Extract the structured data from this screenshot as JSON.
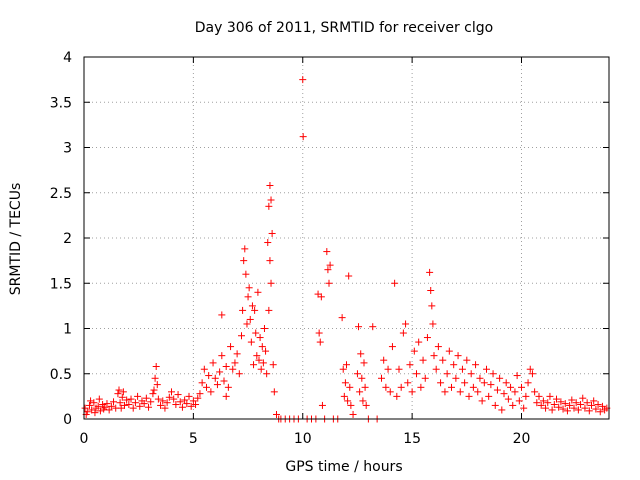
{
  "chart_data": {
    "type": "scatter",
    "title": "Day 306 of 2011, SRMTID for receiver clgo",
    "xlabel": "GPS time / hours",
    "ylabel": "SRMTID / TECUs",
    "xlim": [
      0,
      24
    ],
    "ylim": [
      0,
      4
    ],
    "xticks": [
      "0",
      "5",
      "10",
      "15",
      "20"
    ],
    "yticks": [
      "0",
      "0.5",
      "1",
      "1.5",
      "2",
      "2.5",
      "3",
      "3.5",
      "4"
    ],
    "grid": true,
    "marker": "plus",
    "color": "#ff0000",
    "series": [
      {
        "points": [
          [
            0.05,
            0.12
          ],
          [
            0.15,
            0.08
          ],
          [
            0.25,
            0.15
          ],
          [
            0.35,
            0.1
          ],
          [
            0.45,
            0.18
          ],
          [
            0.55,
            0.12
          ],
          [
            0.65,
            0.14
          ],
          [
            0.75,
            0.09
          ],
          [
            0.85,
            0.16
          ],
          [
            0.95,
            0.13
          ],
          [
            0.1,
            0.05
          ],
          [
            0.3,
            0.2
          ],
          [
            0.5,
            0.07
          ],
          [
            0.7,
            0.22
          ],
          [
            0.9,
            0.11
          ],
          [
            1.05,
            0.17
          ],
          [
            1.15,
            0.1
          ],
          [
            1.25,
            0.14
          ],
          [
            1.35,
            0.19
          ],
          [
            1.45,
            0.12
          ],
          [
            1.55,
            0.28
          ],
          [
            1.65,
            0.18
          ],
          [
            1.75,
            0.24
          ],
          [
            1.85,
            0.15
          ],
          [
            1.95,
            0.21
          ],
          [
            1.6,
            0.32
          ],
          [
            1.7,
            0.12
          ],
          [
            1.8,
            0.3
          ],
          [
            2.05,
            0.16
          ],
          [
            2.15,
            0.22
          ],
          [
            2.25,
            0.12
          ],
          [
            2.35,
            0.18
          ],
          [
            2.45,
            0.25
          ],
          [
            2.55,
            0.14
          ],
          [
            2.65,
            0.2
          ],
          [
            2.75,
            0.17
          ],
          [
            2.85,
            0.23
          ],
          [
            2.95,
            0.13
          ],
          [
            3.05,
            0.19
          ],
          [
            3.15,
            0.28
          ],
          [
            3.25,
            0.45
          ],
          [
            3.3,
            0.58
          ],
          [
            3.35,
            0.38
          ],
          [
            3.2,
            0.32
          ],
          [
            3.4,
            0.22
          ],
          [
            3.5,
            0.15
          ],
          [
            3.6,
            0.2
          ],
          [
            3.7,
            0.12
          ],
          [
            3.8,
            0.18
          ],
          [
            3.9,
            0.24
          ],
          [
            4.0,
            0.3
          ],
          [
            4.1,
            0.22
          ],
          [
            4.2,
            0.16
          ],
          [
            4.3,
            0.27
          ],
          [
            4.4,
            0.19
          ],
          [
            4.5,
            0.13
          ],
          [
            4.6,
            0.21
          ],
          [
            4.7,
            0.17
          ],
          [
            4.8,
            0.25
          ],
          [
            4.9,
            0.14
          ],
          [
            5.0,
            0.2
          ],
          [
            5.1,
            0.16
          ],
          [
            5.2,
            0.23
          ],
          [
            5.3,
            0.28
          ],
          [
            5.4,
            0.4
          ],
          [
            5.5,
            0.55
          ],
          [
            5.6,
            0.35
          ],
          [
            5.7,
            0.48
          ],
          [
            5.8,
            0.3
          ],
          [
            5.9,
            0.62
          ],
          [
            6.0,
            0.45
          ],
          [
            6.1,
            0.38
          ],
          [
            6.2,
            0.52
          ],
          [
            6.3,
            0.7
          ],
          [
            6.4,
            0.42
          ],
          [
            6.5,
            0.58
          ],
          [
            6.6,
            0.35
          ],
          [
            6.7,
            0.8
          ],
          [
            6.8,
            0.55
          ],
          [
            6.9,
            0.62
          ],
          [
            6.3,
            1.15
          ],
          [
            6.5,
            0.25
          ],
          [
            7.0,
            0.72
          ],
          [
            7.1,
            0.5
          ],
          [
            7.2,
            0.92
          ],
          [
            7.25,
            1.2
          ],
          [
            7.3,
            1.75
          ],
          [
            7.35,
            1.88
          ],
          [
            7.4,
            1.6
          ],
          [
            7.45,
            1.05
          ],
          [
            7.5,
            1.35
          ],
          [
            7.55,
            1.45
          ],
          [
            7.6,
            1.1
          ],
          [
            7.65,
            0.85
          ],
          [
            7.7,
            1.25
          ],
          [
            7.75,
            0.6
          ],
          [
            7.8,
            1.2
          ],
          [
            7.85,
            0.95
          ],
          [
            7.9,
            0.7
          ],
          [
            7.95,
            1.4
          ],
          [
            8.0,
            0.65
          ],
          [
            8.05,
            0.9
          ],
          [
            8.1,
            0.55
          ],
          [
            8.15,
            0.8
          ],
          [
            8.2,
            0.62
          ],
          [
            8.25,
            1.0
          ],
          [
            8.3,
            0.75
          ],
          [
            8.35,
            0.5
          ],
          [
            8.4,
            1.95
          ],
          [
            8.45,
            2.35
          ],
          [
            8.5,
            2.58
          ],
          [
            8.55,
            2.42
          ],
          [
            8.5,
            1.75
          ],
          [
            8.55,
            1.5
          ],
          [
            8.6,
            2.05
          ],
          [
            8.45,
            1.2
          ],
          [
            8.65,
            0.6
          ],
          [
            8.7,
            0.3
          ],
          [
            8.8,
            0.05
          ],
          [
            8.9,
            0.0
          ],
          [
            9.0,
            0.0
          ],
          [
            9.2,
            0.0
          ],
          [
            9.4,
            0.0
          ],
          [
            9.6,
            0.0
          ],
          [
            9.8,
            0.0
          ],
          [
            10.0,
            3.75
          ],
          [
            10.02,
            3.12
          ],
          [
            10.2,
            0.0
          ],
          [
            10.4,
            0.0
          ],
          [
            10.6,
            0.0
          ],
          [
            10.7,
            1.38
          ],
          [
            10.75,
            0.95
          ],
          [
            10.8,
            0.85
          ],
          [
            10.85,
            1.35
          ],
          [
            10.9,
            0.15
          ],
          [
            11.0,
            0.0
          ],
          [
            11.1,
            1.85
          ],
          [
            11.15,
            1.65
          ],
          [
            11.2,
            1.5
          ],
          [
            11.25,
            1.7
          ],
          [
            11.4,
            0.0
          ],
          [
            11.6,
            0.0
          ],
          [
            11.8,
            1.12
          ],
          [
            11.85,
            0.55
          ],
          [
            11.9,
            0.25
          ],
          [
            11.95,
            0.4
          ],
          [
            12.0,
            0.6
          ],
          [
            12.05,
            0.2
          ],
          [
            12.1,
            1.58
          ],
          [
            12.15,
            0.35
          ],
          [
            12.2,
            0.15
          ],
          [
            12.3,
            0.05
          ],
          [
            12.5,
            0.5
          ],
          [
            12.55,
            1.02
          ],
          [
            12.6,
            0.3
          ],
          [
            12.65,
            0.72
          ],
          [
            12.7,
            0.45
          ],
          [
            12.75,
            0.2
          ],
          [
            12.8,
            0.62
          ],
          [
            12.85,
            0.35
          ],
          [
            12.9,
            0.15
          ],
          [
            13.0,
            0.0
          ],
          [
            13.2,
            1.02
          ],
          [
            13.4,
            0.0
          ],
          [
            13.6,
            0.45
          ],
          [
            13.7,
            0.65
          ],
          [
            13.8,
            0.35
          ],
          [
            13.9,
            0.55
          ],
          [
            14.0,
            0.3
          ],
          [
            14.1,
            0.8
          ],
          [
            14.2,
            1.5
          ],
          [
            14.3,
            0.25
          ],
          [
            14.4,
            0.55
          ],
          [
            14.5,
            0.35
          ],
          [
            14.6,
            0.95
          ],
          [
            14.7,
            1.05
          ],
          [
            14.8,
            0.4
          ],
          [
            14.9,
            0.6
          ],
          [
            15.0,
            0.3
          ],
          [
            15.1,
            0.75
          ],
          [
            15.2,
            0.5
          ],
          [
            15.3,
            0.85
          ],
          [
            15.4,
            0.35
          ],
          [
            15.5,
            0.65
          ],
          [
            15.6,
            0.45
          ],
          [
            15.7,
            0.9
          ],
          [
            15.8,
            1.62
          ],
          [
            15.85,
            1.42
          ],
          [
            15.9,
            1.25
          ],
          [
            15.95,
            1.05
          ],
          [
            16.0,
            0.7
          ],
          [
            16.1,
            0.55
          ],
          [
            16.2,
            0.8
          ],
          [
            16.3,
            0.4
          ],
          [
            16.4,
            0.65
          ],
          [
            16.5,
            0.3
          ],
          [
            16.6,
            0.5
          ],
          [
            16.7,
            0.75
          ],
          [
            16.8,
            0.35
          ],
          [
            16.9,
            0.6
          ],
          [
            17.0,
            0.45
          ],
          [
            17.1,
            0.7
          ],
          [
            17.2,
            0.3
          ],
          [
            17.3,
            0.55
          ],
          [
            17.4,
            0.4
          ],
          [
            17.5,
            0.65
          ],
          [
            17.6,
            0.25
          ],
          [
            17.7,
            0.5
          ],
          [
            17.8,
            0.35
          ],
          [
            17.9,
            0.6
          ],
          [
            18.0,
            0.3
          ],
          [
            18.1,
            0.45
          ],
          [
            18.2,
            0.2
          ],
          [
            18.3,
            0.4
          ],
          [
            18.4,
            0.55
          ],
          [
            18.5,
            0.25
          ],
          [
            18.6,
            0.38
          ],
          [
            18.7,
            0.5
          ],
          [
            18.8,
            0.15
          ],
          [
            18.9,
            0.32
          ],
          [
            19.0,
            0.45
          ],
          [
            19.1,
            0.1
          ],
          [
            19.2,
            0.28
          ],
          [
            19.3,
            0.4
          ],
          [
            19.4,
            0.22
          ],
          [
            19.5,
            0.35
          ],
          [
            19.6,
            0.15
          ],
          [
            19.7,
            0.3
          ],
          [
            19.8,
            0.48
          ],
          [
            19.9,
            0.2
          ],
          [
            20.0,
            0.35
          ],
          [
            20.1,
            0.12
          ],
          [
            20.2,
            0.25
          ],
          [
            20.3,
            0.4
          ],
          [
            20.4,
            0.55
          ],
          [
            20.5,
            0.5
          ],
          [
            20.6,
            0.3
          ],
          [
            20.7,
            0.18
          ],
          [
            20.8,
            0.25
          ],
          [
            20.9,
            0.15
          ],
          [
            21.0,
            0.2
          ],
          [
            21.1,
            0.12
          ],
          [
            21.2,
            0.18
          ],
          [
            21.3,
            0.25
          ],
          [
            21.4,
            0.1
          ],
          [
            21.5,
            0.16
          ],
          [
            21.6,
            0.22
          ],
          [
            21.7,
            0.13
          ],
          [
            21.8,
            0.19
          ],
          [
            21.9,
            0.11
          ],
          [
            22.0,
            0.17
          ],
          [
            22.1,
            0.09
          ],
          [
            22.2,
            0.15
          ],
          [
            22.3,
            0.21
          ],
          [
            22.4,
            0.12
          ],
          [
            22.5,
            0.18
          ],
          [
            22.6,
            0.1
          ],
          [
            22.7,
            0.16
          ],
          [
            22.8,
            0.23
          ],
          [
            22.9,
            0.12
          ],
          [
            23.0,
            0.18
          ],
          [
            23.1,
            0.09
          ],
          [
            23.2,
            0.15
          ],
          [
            23.3,
            0.2
          ],
          [
            23.4,
            0.11
          ],
          [
            23.5,
            0.16
          ],
          [
            23.6,
            0.08
          ],
          [
            23.7,
            0.14
          ],
          [
            23.8,
            0.1
          ],
          [
            23.9,
            0.12
          ]
        ]
      }
    ]
  }
}
